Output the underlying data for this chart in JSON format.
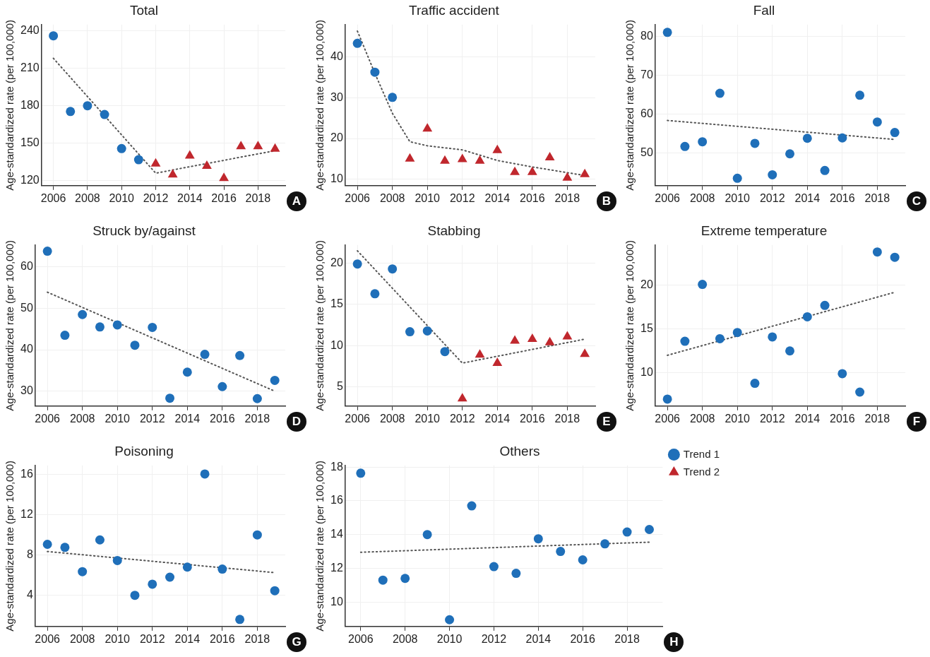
{
  "chart_data": [
    {
      "type": "scatter",
      "title": "Total",
      "ylabel": "Age-standardized rate (per 100,000)",
      "xlim": [
        2005.3,
        2019.6
      ],
      "xticks": [
        2006,
        2008,
        2010,
        2012,
        2014,
        2016,
        2018
      ],
      "ylim": [
        116,
        245
      ],
      "yticks": [
        120,
        150,
        180,
        210,
        240
      ],
      "grid": true,
      "annotations": [
        "A"
      ],
      "series": [
        {
          "color": "#1f6fb9",
          "marker": "circle",
          "x": [
            2006,
            2007,
            2008,
            2009,
            2010,
            2011
          ],
          "values": [
            236,
            175.4,
            180,
            173,
            145.7,
            136.8
          ]
        },
        {
          "color": "#c0272d",
          "marker": "triangle",
          "x": [
            2012,
            2013,
            2014,
            2015,
            2016,
            2017,
            2018,
            2019
          ],
          "values": [
            133.5,
            124.8,
            140,
            131.7,
            122,
            147.5,
            147.5,
            145.5
          ]
        },
        {
          "type": "line",
          "color": "#555555",
          "marker": "none",
          "line_style": "dotted",
          "x": [
            2006,
            2012,
            2019
          ],
          "values": [
            218,
            126,
            144
          ]
        }
      ]
    },
    {
      "type": "scatter",
      "title": "Traffic accident",
      "ylabel": "Age-standardized rate (per 100,000)",
      "xlim": [
        2005.3,
        2019.6
      ],
      "xticks": [
        2006,
        2008,
        2010,
        2012,
        2014,
        2016,
        2018
      ],
      "ylim": [
        8.4,
        48
      ],
      "yticks": [
        10,
        20,
        30,
        40
      ],
      "grid": true,
      "annotations": [
        "B"
      ],
      "series": [
        {
          "color": "#1f6fb9",
          "marker": "circle",
          "x": [
            2006,
            2007,
            2008
          ],
          "values": [
            43.4,
            36.3,
            30.1
          ]
        },
        {
          "color": "#c0272d",
          "marker": "triangle",
          "x": [
            2009,
            2010,
            2011,
            2012,
            2013,
            2014,
            2015,
            2016,
            2017,
            2018,
            2019
          ],
          "values": [
            15,
            22.4,
            14.5,
            14.9,
            14.5,
            17.1,
            11.7,
            11.7,
            15.3,
            10.3,
            11.2
          ]
        },
        {
          "type": "line",
          "color": "#555555",
          "marker": "none",
          "line_style": "dotted",
          "x": [
            2006,
            2007,
            2008,
            2009,
            2010,
            2012,
            2014,
            2016,
            2019
          ],
          "values": [
            46.4,
            36,
            26.2,
            19.2,
            18.2,
            17.2,
            14.6,
            13,
            10.9
          ]
        }
      ]
    },
    {
      "type": "scatter",
      "title": "Fall",
      "ylabel": "Age-standardized rate (per 100,000)",
      "xlim": [
        2005.3,
        2019.6
      ],
      "xticks": [
        2006,
        2008,
        2010,
        2012,
        2014,
        2016,
        2018
      ],
      "ylim": [
        41.5,
        83
      ],
      "yticks": [
        50,
        60,
        70,
        80
      ],
      "grid": true,
      "annotations": [
        "C"
      ],
      "series": [
        {
          "color": "#1f6fb9",
          "marker": "circle",
          "x": [
            2006,
            2007,
            2008,
            2009,
            2010,
            2011,
            2012,
            2013,
            2014,
            2015,
            2016,
            2017,
            2018,
            2019
          ],
          "values": [
            81,
            51.6,
            52.8,
            65.3,
            43.4,
            52.4,
            44.3,
            49.7,
            53.7,
            45.4,
            53.8,
            64.8,
            57.9,
            55.2
          ]
        },
        {
          "type": "line",
          "color": "#555555",
          "marker": "none",
          "line_style": "dotted",
          "x": [
            2006,
            2019
          ],
          "values": [
            58.3,
            53.4
          ]
        }
      ]
    },
    {
      "type": "scatter",
      "title": "Struck by/against",
      "ylabel": "Age-standardized rate (per 100,000)",
      "xlim": [
        2005.3,
        2019.6
      ],
      "xticks": [
        2006,
        2008,
        2010,
        2012,
        2014,
        2016,
        2018
      ],
      "ylim": [
        26.4,
        65.3
      ],
      "yticks": [
        30,
        40,
        50,
        60
      ],
      "grid": true,
      "annotations": [
        "D"
      ],
      "series": [
        {
          "color": "#1f6fb9",
          "marker": "circle",
          "x": [
            2006,
            2007,
            2008,
            2009,
            2010,
            2011,
            2012,
            2013,
            2014,
            2015,
            2016,
            2017,
            2018,
            2019
          ],
          "values": [
            63.8,
            43.5,
            48.5,
            45.5,
            46,
            41.1,
            45.4,
            28.3,
            34.6,
            38.9,
            31.1,
            38.6,
            28.2,
            32.6
          ]
        },
        {
          "type": "line",
          "color": "#555555",
          "marker": "none",
          "line_style": "dotted",
          "x": [
            2006,
            2019
          ],
          "values": [
            53.9,
            30
          ]
        }
      ]
    },
    {
      "type": "scatter",
      "title": "Stabbing",
      "ylabel": "Age-standardized rate (per 100,000)",
      "xlim": [
        2005.3,
        2019.6
      ],
      "xticks": [
        2006,
        2008,
        2010,
        2012,
        2014,
        2016,
        2018
      ],
      "ylim": [
        2.7,
        22.2
      ],
      "yticks": [
        5,
        10,
        15,
        20
      ],
      "grid": true,
      "annotations": [
        "E"
      ],
      "series": [
        {
          "color": "#1f6fb9",
          "marker": "circle",
          "x": [
            2006,
            2007,
            2008,
            2009,
            2010,
            2011
          ],
          "values": [
            19.9,
            16.3,
            19.3,
            11.7,
            11.8,
            9.3
          ]
        },
        {
          "color": "#c0272d",
          "marker": "triangle",
          "x": [
            2012,
            2013,
            2014,
            2015,
            2016,
            2017,
            2018,
            2019
          ],
          "values": [
            3.6,
            8.9,
            7.9,
            10.6,
            10.8,
            10.4,
            11.1,
            9
          ]
        },
        {
          "type": "line",
          "color": "#555555",
          "marker": "none",
          "line_style": "dotted",
          "x": [
            2006,
            2012,
            2019
          ],
          "values": [
            21.5,
            7.9,
            10.8
          ]
        }
      ]
    },
    {
      "type": "scatter",
      "title": "Extreme temperature",
      "ylabel": "Age-standardized rate (per 100,000)",
      "xlim": [
        2005.3,
        2019.6
      ],
      "xticks": [
        2006,
        2008,
        2010,
        2012,
        2014,
        2016,
        2018
      ],
      "ylim": [
        6.2,
        24.6
      ],
      "yticks": [
        10,
        15,
        20
      ],
      "grid": true,
      "annotations": [
        "F"
      ],
      "series": [
        {
          "color": "#1f6fb9",
          "marker": "circle",
          "x": [
            2006,
            2007,
            2008,
            2009,
            2010,
            2011,
            2012,
            2013,
            2014,
            2015,
            2016,
            2017,
            2018,
            2019
          ],
          "values": [
            7,
            13.6,
            20.1,
            13.9,
            14.6,
            8.8,
            14.1,
            12.5,
            16.4,
            17.7,
            9.9,
            7.8,
            23.8,
            23.2
          ]
        },
        {
          "type": "line",
          "color": "#555555",
          "marker": "none",
          "line_style": "dotted",
          "x": [
            2006,
            2019
          ],
          "values": [
            12,
            19.2
          ]
        }
      ]
    },
    {
      "type": "scatter",
      "title": "Poisoning",
      "ylabel": "Age-standardized rate (per 100,000)",
      "xlim": [
        2005.3,
        2019.6
      ],
      "xticks": [
        2006,
        2008,
        2010,
        2012,
        2014,
        2016,
        2018
      ],
      "ylim": [
        0.9,
        16.9
      ],
      "yticks": [
        4,
        8,
        12,
        16
      ],
      "grid": true,
      "annotations": [
        "G"
      ],
      "series": [
        {
          "color": "#1f6fb9",
          "marker": "circle",
          "x": [
            2006,
            2007,
            2008,
            2009,
            2010,
            2011,
            2012,
            2013,
            2014,
            2015,
            2016,
            2017,
            2018,
            2019
          ],
          "values": [
            9.06,
            8.76,
            6.35,
            9.5,
            7.45,
            4,
            5.1,
            5.8,
            6.8,
            16.05,
            6.6,
            1.6,
            10,
            4.45
          ]
        },
        {
          "type": "line",
          "color": "#555555",
          "marker": "none",
          "line_style": "dotted",
          "x": [
            2006,
            2019
          ],
          "values": [
            8.35,
            6.25
          ]
        }
      ]
    },
    {
      "type": "scatter",
      "title": "Others",
      "ylabel": "Age-standardized rate (per 100,000)",
      "xlim": [
        2005.3,
        2019.6
      ],
      "xticks": [
        2006,
        2008,
        2010,
        2012,
        2014,
        2016,
        2018
      ],
      "ylim": [
        8.55,
        18.1
      ],
      "yticks": [
        10,
        12,
        14,
        16,
        18
      ],
      "grid": true,
      "legend": "right",
      "annotations": [
        "H"
      ],
      "series": [
        {
          "name": "Trend 1",
          "color": "#1f6fb9",
          "marker": "circle",
          "x": [
            2006,
            2007,
            2008,
            2009,
            2010,
            2011,
            2012,
            2013,
            2014,
            2015,
            2016,
            2017,
            2018,
            2019
          ],
          "values": [
            17.64,
            11.3,
            11.4,
            14,
            8.95,
            15.7,
            12.1,
            11.7,
            13.75,
            13,
            12.5,
            13.45,
            14.15,
            14.3
          ]
        },
        {
          "name": "Trend 2",
          "color": "#c0272d",
          "marker": "triangle"
        },
        {
          "type": "line",
          "color": "#555555",
          "marker": "none",
          "line_style": "dotted",
          "x": [
            2006,
            2019
          ],
          "values": [
            12.95,
            13.55
          ]
        }
      ]
    }
  ]
}
